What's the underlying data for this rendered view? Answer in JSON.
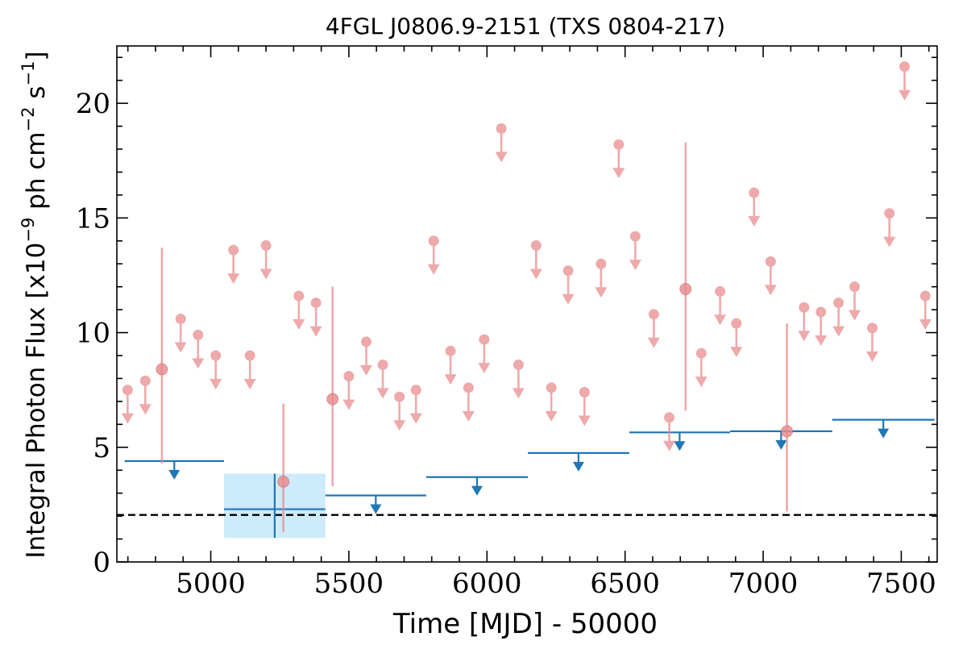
{
  "chart_data": {
    "type": "scatter",
    "title": "4FGL J0806.9-2151 (TXS 0804-217)",
    "xlabel": "Time [MJD] - 50000",
    "ylabel": "Integral Photon Flux [x10",
    "ylabel_exp": "−9",
    "ylabel_mid": " ph cm",
    "ylabel_exp2": "−2",
    "ylabel_mid2": " s",
    "ylabel_exp3": "−1",
    "ylabel_end": "]",
    "xlim": [
      4660,
      7630
    ],
    "ylim": [
      0,
      22.5
    ],
    "xticks": [
      "5000",
      "5500",
      "6000",
      "6500",
      "7000",
      "7500"
    ],
    "xtick_values": [
      5000,
      5500,
      6000,
      6500,
      7000,
      7500
    ],
    "yticks": [
      "0",
      "5",
      "10",
      "15",
      "20"
    ],
    "ytick_values": [
      0,
      5,
      10,
      15,
      20
    ],
    "reference_flux": 2.05,
    "colors": {
      "monthly": "#e8898c",
      "yearly": "#1f77b4",
      "band": "#cdebfb",
      "ref": "#000000"
    },
    "monthly_upper_limits": [
      {
        "x": 4699,
        "y": 7.5
      },
      {
        "x": 4763,
        "y": 7.9
      },
      {
        "x": 4891,
        "y": 10.6
      },
      {
        "x": 4954,
        "y": 9.9
      },
      {
        "x": 5018,
        "y": 9.0
      },
      {
        "x": 5082,
        "y": 13.6
      },
      {
        "x": 5142,
        "y": 9.0
      },
      {
        "x": 5200,
        "y": 13.8
      },
      {
        "x": 5319,
        "y": 11.6
      },
      {
        "x": 5381,
        "y": 11.3
      },
      {
        "x": 5500,
        "y": 8.1
      },
      {
        "x": 5563,
        "y": 9.6
      },
      {
        "x": 5623,
        "y": 8.6
      },
      {
        "x": 5683,
        "y": 7.2
      },
      {
        "x": 5743,
        "y": 7.5
      },
      {
        "x": 5807,
        "y": 14.0
      },
      {
        "x": 5868,
        "y": 9.2
      },
      {
        "x": 5933,
        "y": 7.6
      },
      {
        "x": 5990,
        "y": 9.7
      },
      {
        "x": 6052,
        "y": 18.9
      },
      {
        "x": 6114,
        "y": 8.6
      },
      {
        "x": 6178,
        "y": 13.8
      },
      {
        "x": 6233,
        "y": 7.6
      },
      {
        "x": 6294,
        "y": 12.7
      },
      {
        "x": 6353,
        "y": 7.4
      },
      {
        "x": 6413,
        "y": 13.0
      },
      {
        "x": 6477,
        "y": 18.2
      },
      {
        "x": 6537,
        "y": 14.2
      },
      {
        "x": 6604,
        "y": 10.8
      },
      {
        "x": 6660,
        "y": 6.3
      },
      {
        "x": 6776,
        "y": 9.1
      },
      {
        "x": 6844,
        "y": 11.8
      },
      {
        "x": 6903,
        "y": 10.4
      },
      {
        "x": 6967,
        "y": 16.1
      },
      {
        "x": 7027,
        "y": 13.1
      },
      {
        "x": 7148,
        "y": 11.1
      },
      {
        "x": 7209,
        "y": 10.9
      },
      {
        "x": 7273,
        "y": 11.3
      },
      {
        "x": 7331,
        "y": 12.0
      },
      {
        "x": 7395,
        "y": 10.2
      },
      {
        "x": 7457,
        "y": 15.2
      },
      {
        "x": 7512,
        "y": 21.6
      },
      {
        "x": 7587,
        "y": 11.6
      }
    ],
    "monthly_detections": [
      {
        "x": 4823,
        "y": 8.4,
        "ylo": 4.3,
        "yhi": 13.7
      },
      {
        "x": 5263,
        "y": 3.5,
        "ylo": 1.3,
        "yhi": 6.9
      },
      {
        "x": 5441,
        "y": 7.1,
        "ylo": 3.3,
        "yhi": 12.0
      },
      {
        "x": 6719,
        "y": 11.9,
        "ylo": 6.6,
        "yhi": 18.3
      },
      {
        "x": 7086,
        "y": 5.7,
        "ylo": 2.2,
        "yhi": 10.4
      }
    ],
    "yearly_upper_limits": [
      {
        "x0": 4688,
        "x1": 5048,
        "y": 4.4
      },
      {
        "x0": 5415,
        "x1": 5780,
        "y": 2.9
      },
      {
        "x0": 5780,
        "x1": 6148,
        "y": 3.7
      },
      {
        "x0": 6148,
        "x1": 6515,
        "y": 4.75
      },
      {
        "x0": 6515,
        "x1": 6880,
        "y": 5.65
      },
      {
        "x0": 6880,
        "x1": 7250,
        "y": 5.7
      },
      {
        "x0": 7250,
        "x1": 7620,
        "y": 6.2
      }
    ],
    "yearly_detection": {
      "x0": 5048,
      "x1": 5415,
      "y": 2.3,
      "ylo": 1.05,
      "yhi": 3.85
    }
  }
}
